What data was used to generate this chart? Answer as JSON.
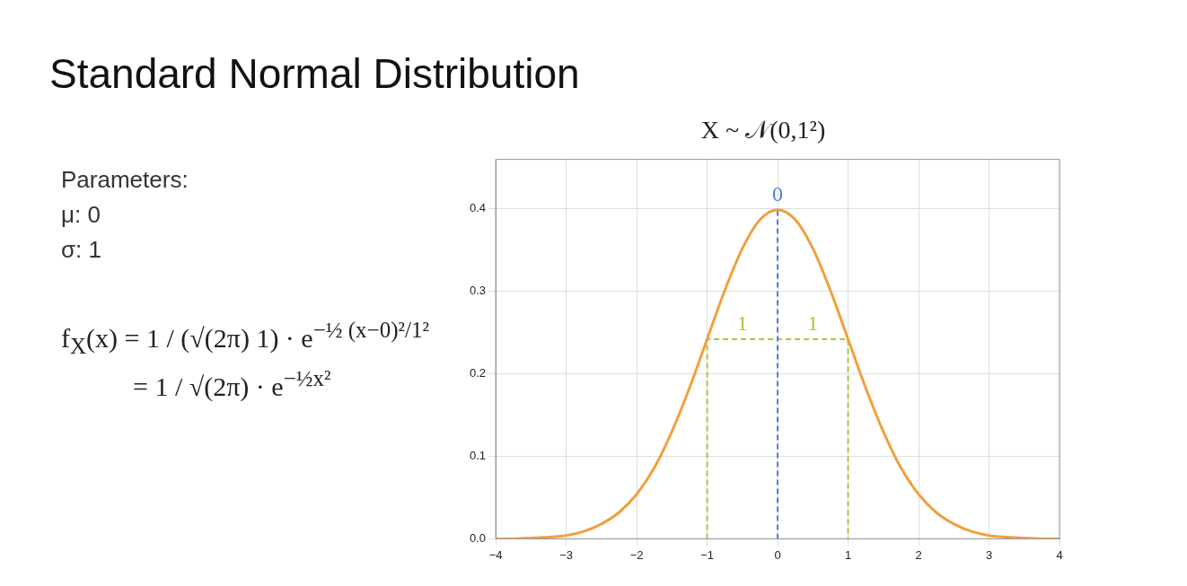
{
  "chart_data": {
    "type": "line",
    "title": "Standard Normal Distribution",
    "subtitle": "X ~ 𝒩(0,1²)",
    "x": [
      -4,
      -3.75,
      -3.5,
      -3.25,
      -3,
      -2.75,
      -2.5,
      -2.25,
      -2,
      -1.75,
      -1.5,
      -1.25,
      -1,
      -0.75,
      -0.5,
      -0.25,
      0,
      0.25,
      0.5,
      0.75,
      1,
      1.25,
      1.5,
      1.75,
      2,
      2.25,
      2.5,
      2.75,
      3,
      3.25,
      3.5,
      3.75,
      4
    ],
    "series": [
      {
        "color": "#f0a040",
        "line_style": "solid",
        "values": [
          0.0,
          0.0,
          0.001,
          0.002,
          0.004,
          0.009,
          0.018,
          0.032,
          0.054,
          0.086,
          0.13,
          0.183,
          0.242,
          0.301,
          0.352,
          0.387,
          0.399,
          0.387,
          0.352,
          0.301,
          0.242,
          0.183,
          0.13,
          0.086,
          0.054,
          0.032,
          0.018,
          0.009,
          0.004,
          0.002,
          0.001,
          0.0,
          0.0
        ]
      },
      {
        "color": "#4a7fd6",
        "line_style": "dashed",
        "x": [
          0,
          0
        ],
        "values": [
          0,
          0.399
        ]
      },
      {
        "color": "#a8c832",
        "line_style": "dashed",
        "x": [
          -1,
          -1,
          1,
          1
        ],
        "values": [
          0,
          0.242,
          0.242,
          0
        ]
      }
    ],
    "xlim": [
      -4,
      4
    ],
    "xticks": [
      {
        "value": -4,
        "label": "−4"
      },
      {
        "value": -3,
        "label": "−3"
      },
      {
        "value": -2,
        "label": "−2"
      },
      {
        "value": -1,
        "label": "−1"
      },
      0,
      1,
      2,
      3,
      4
    ],
    "ylim": [
      0,
      0.46
    ],
    "yticks": [
      {
        "value": 0,
        "label": "0.0"
      },
      0.1,
      0.2,
      0.3,
      0.4
    ],
    "grid": true,
    "marker": "none",
    "annotations": [
      "Parameters:",
      "μ: 0",
      "σ: 1",
      "f$_{X}$(x) = 1 / (√(2π) 1) · e$^{−½ (x−0)²/1²}$",
      "= 1 / √(2π) · e$^{−½x²}$",
      {
        "text": "0",
        "x": 0,
        "y": 0.399
      },
      {
        "text": "1",
        "x": -0.5,
        "y": 0.242
      },
      {
        "text": "1",
        "x": 0.5,
        "y": 0.242
      }
    ]
  }
}
